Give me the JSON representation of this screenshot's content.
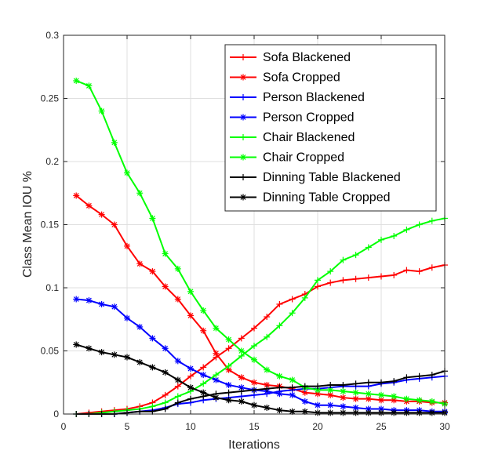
{
  "chart_data": {
    "type": "line",
    "title": "",
    "xlabel": "Iterations",
    "ylabel": "Class Mean IOU %",
    "xlim": [
      0,
      30
    ],
    "ylim": [
      0,
      0.3
    ],
    "xticks": [
      "0",
      "5",
      "10",
      "15",
      "20",
      "25",
      "30"
    ],
    "xtick_values": [
      0,
      5,
      10,
      15,
      20,
      25,
      30
    ],
    "yticks": [
      "0",
      "0.05",
      "0.1",
      "0.15",
      "0.2",
      "0.25",
      "0.3"
    ],
    "ytick_values": [
      0,
      0.05,
      0.1,
      0.15,
      0.2,
      0.25,
      0.3
    ],
    "grid": true,
    "legend_position": "top-right",
    "x": [
      1,
      2,
      3,
      4,
      5,
      6,
      7,
      8,
      9,
      10,
      11,
      12,
      13,
      14,
      15,
      16,
      17,
      18,
      19,
      20,
      21,
      22,
      23,
      24,
      25,
      26,
      27,
      28,
      29,
      30
    ],
    "series": [
      {
        "name": "Sofa Blackened",
        "color": "#ff0000",
        "marker": "plus",
        "values": [
          0.0,
          0.001,
          0.002,
          0.003,
          0.004,
          0.006,
          0.009,
          0.015,
          0.022,
          0.03,
          0.037,
          0.045,
          0.052,
          0.06,
          0.068,
          0.077,
          0.087,
          0.091,
          0.095,
          0.101,
          0.104,
          0.106,
          0.107,
          0.108,
          0.109,
          0.11,
          0.114,
          0.113,
          0.116,
          0.118
        ]
      },
      {
        "name": "Sofa Cropped",
        "color": "#ff0000",
        "marker": "star",
        "values": [
          0.173,
          0.165,
          0.158,
          0.15,
          0.133,
          0.119,
          0.113,
          0.101,
          0.091,
          0.078,
          0.066,
          0.048,
          0.035,
          0.029,
          0.025,
          0.023,
          0.022,
          0.02,
          0.017,
          0.016,
          0.015,
          0.013,
          0.012,
          0.012,
          0.011,
          0.011,
          0.01,
          0.01,
          0.009,
          0.009
        ]
      },
      {
        "name": "Person Blackened",
        "color": "#0000ff",
        "marker": "plus",
        "values": [
          0.0,
          0.0,
          0.0,
          0.0,
          0.001,
          0.002,
          0.003,
          0.005,
          0.008,
          0.009,
          0.011,
          0.012,
          0.013,
          0.014,
          0.015,
          0.016,
          0.018,
          0.019,
          0.02,
          0.02,
          0.021,
          0.022,
          0.022,
          0.022,
          0.024,
          0.025,
          0.027,
          0.028,
          0.029,
          0.03
        ]
      },
      {
        "name": "Person Cropped",
        "color": "#0000ff",
        "marker": "star",
        "values": [
          0.091,
          0.09,
          0.087,
          0.085,
          0.076,
          0.069,
          0.06,
          0.052,
          0.042,
          0.036,
          0.031,
          0.027,
          0.023,
          0.021,
          0.019,
          0.018,
          0.016,
          0.015,
          0.01,
          0.007,
          0.007,
          0.006,
          0.005,
          0.004,
          0.004,
          0.003,
          0.003,
          0.003,
          0.002,
          0.002
        ]
      },
      {
        "name": "Chair Blackened",
        "color": "#00ff00",
        "marker": "plus",
        "values": [
          0.0,
          0.0,
          0.001,
          0.002,
          0.003,
          0.004,
          0.006,
          0.009,
          0.014,
          0.018,
          0.024,
          0.031,
          0.038,
          0.046,
          0.054,
          0.061,
          0.07,
          0.08,
          0.092,
          0.106,
          0.113,
          0.122,
          0.126,
          0.132,
          0.138,
          0.141,
          0.146,
          0.15,
          0.153,
          0.155
        ]
      },
      {
        "name": "Chair Cropped",
        "color": "#00ff00",
        "marker": "star",
        "values": [
          0.264,
          0.26,
          0.24,
          0.215,
          0.191,
          0.175,
          0.155,
          0.127,
          0.115,
          0.097,
          0.082,
          0.068,
          0.059,
          0.05,
          0.043,
          0.035,
          0.03,
          0.027,
          0.021,
          0.019,
          0.019,
          0.018,
          0.017,
          0.016,
          0.015,
          0.014,
          0.012,
          0.011,
          0.01,
          0.008
        ]
      },
      {
        "name": "Dinning Table Blackened",
        "color": "#000000",
        "marker": "plus",
        "values": [
          0.0,
          0.0,
          0.0,
          0.0,
          0.001,
          0.002,
          0.002,
          0.004,
          0.009,
          0.012,
          0.014,
          0.016,
          0.017,
          0.018,
          0.019,
          0.02,
          0.021,
          0.021,
          0.022,
          0.022,
          0.023,
          0.023,
          0.024,
          0.025,
          0.025,
          0.026,
          0.029,
          0.03,
          0.031,
          0.034
        ]
      },
      {
        "name": "Dinning Table Cropped",
        "color": "#000000",
        "marker": "star",
        "values": [
          0.055,
          0.052,
          0.049,
          0.047,
          0.045,
          0.041,
          0.037,
          0.033,
          0.027,
          0.021,
          0.017,
          0.013,
          0.011,
          0.01,
          0.007,
          0.005,
          0.003,
          0.002,
          0.002,
          0.001,
          0.001,
          0.001,
          0.001,
          0.001,
          0.001,
          0.001,
          0.001,
          0.001,
          0.001,
          0.001
        ]
      }
    ]
  }
}
